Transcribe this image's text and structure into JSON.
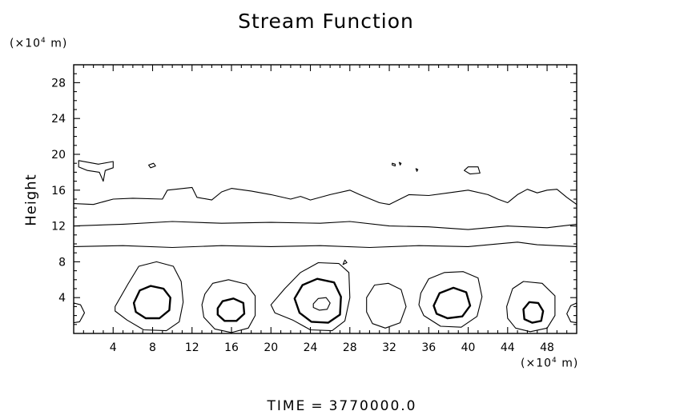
{
  "chart_data": {
    "type": "contour",
    "title": "Stream Function",
    "ylabel": "Height",
    "y_unit": "(×10",
    "y_unit_exp": "4",
    "y_unit_suffix": " m)",
    "x_unit": "(×10",
    "x_unit_exp": "4",
    "x_unit_suffix": " m)",
    "xlim": [
      0,
      51
    ],
    "ylim": [
      0,
      30
    ],
    "x_ticks": [
      4,
      8,
      12,
      16,
      20,
      24,
      28,
      32,
      36,
      40,
      44,
      48
    ],
    "y_ticks": [
      4,
      8,
      12,
      16,
      20,
      24,
      28
    ],
    "grid": false,
    "footer": {
      "label": "TIME",
      "equals": "=",
      "value": "3770000.0"
    },
    "contours": [
      {
        "id": "layer-10",
        "kind": "open",
        "weight": "thin",
        "points": [
          [
            0,
            9.7
          ],
          [
            5,
            9.8
          ],
          [
            10,
            9.6
          ],
          [
            15,
            9.8
          ],
          [
            20,
            9.7
          ],
          [
            25,
            9.8
          ],
          [
            30,
            9.6
          ],
          [
            35,
            9.8
          ],
          [
            40,
            9.7
          ],
          [
            45,
            10.2
          ],
          [
            47,
            9.9
          ],
          [
            51,
            9.7
          ]
        ]
      },
      {
        "id": "layer-12",
        "kind": "open",
        "weight": "thin",
        "points": [
          [
            0,
            12.0
          ],
          [
            5,
            12.2
          ],
          [
            10,
            12.5
          ],
          [
            15,
            12.3
          ],
          [
            20,
            12.4
          ],
          [
            25,
            12.3
          ],
          [
            28,
            12.5
          ],
          [
            32,
            12.0
          ],
          [
            36,
            11.9
          ],
          [
            40,
            11.6
          ],
          [
            44,
            12.0
          ],
          [
            48,
            11.8
          ],
          [
            51,
            12.2
          ]
        ]
      },
      {
        "id": "layer-15",
        "kind": "open",
        "weight": "thin",
        "points": [
          [
            0,
            14.5
          ],
          [
            2,
            14.4
          ],
          [
            4,
            15.0
          ],
          [
            6,
            15.1
          ],
          [
            9,
            15.0
          ],
          [
            9.5,
            16.0
          ],
          [
            12,
            16.3
          ],
          [
            12.5,
            15.2
          ],
          [
            14,
            14.9
          ],
          [
            15,
            15.8
          ],
          [
            16,
            16.2
          ],
          [
            18,
            15.9
          ],
          [
            20,
            15.5
          ],
          [
            22,
            15.0
          ],
          [
            23,
            15.3
          ],
          [
            24,
            14.9
          ],
          [
            26,
            15.5
          ],
          [
            28,
            16.0
          ],
          [
            29,
            15.5
          ],
          [
            31,
            14.6
          ],
          [
            32,
            14.4
          ],
          [
            34,
            15.5
          ],
          [
            36,
            15.4
          ],
          [
            38,
            15.7
          ],
          [
            40,
            16.0
          ],
          [
            42,
            15.5
          ],
          [
            43,
            15.0
          ],
          [
            44,
            14.6
          ],
          [
            45,
            15.5
          ],
          [
            46,
            16.1
          ],
          [
            47,
            15.7
          ],
          [
            48,
            16.0
          ],
          [
            49,
            16.1
          ],
          [
            50,
            15.2
          ],
          [
            51,
            14.4
          ]
        ]
      },
      {
        "id": "patch-upper-left",
        "kind": "closed",
        "weight": "thin",
        "points": [
          [
            0.5,
            19.3
          ],
          [
            2.5,
            18.9
          ],
          [
            4,
            19.2
          ],
          [
            4,
            18.5
          ],
          [
            3.2,
            18.2
          ],
          [
            3,
            17.0
          ],
          [
            2.6,
            18.0
          ],
          [
            1.4,
            18.2
          ],
          [
            0.5,
            18.6
          ]
        ]
      },
      {
        "id": "patch-a",
        "kind": "closed",
        "weight": "thin",
        "points": [
          [
            7.6,
            18.8
          ],
          [
            8.1,
            19.0
          ],
          [
            8.3,
            18.7
          ],
          [
            7.8,
            18.5
          ]
        ]
      },
      {
        "id": "patch-b",
        "kind": "closed",
        "weight": "thin",
        "points": [
          [
            32.3,
            19.0
          ],
          [
            32.6,
            18.9
          ],
          [
            32.6,
            18.7
          ],
          [
            32.3,
            18.8
          ]
        ]
      },
      {
        "id": "patch-c",
        "kind": "closed",
        "weight": "thin",
        "points": [
          [
            33.0,
            19.1
          ],
          [
            33.2,
            19.0
          ],
          [
            33.1,
            18.8
          ]
        ]
      },
      {
        "id": "patch-d",
        "kind": "closed",
        "weight": "thin",
        "points": [
          [
            34.7,
            18.4
          ],
          [
            34.9,
            18.3
          ],
          [
            34.8,
            18.1
          ]
        ]
      },
      {
        "id": "patch-e",
        "kind": "closed",
        "weight": "thin",
        "points": [
          [
            40.0,
            18.6
          ],
          [
            41.0,
            18.6
          ],
          [
            41.2,
            17.9
          ],
          [
            40.2,
            17.8
          ],
          [
            39.6,
            18.2
          ]
        ]
      },
      {
        "id": "patch-f",
        "kind": "closed",
        "weight": "thin",
        "points": [
          [
            27.3,
            7.7
          ],
          [
            27.5,
            8.2
          ],
          [
            27.7,
            7.9
          ]
        ]
      },
      {
        "id": "eddy-edge-left",
        "kind": "closed",
        "weight": "thin",
        "points": [
          [
            0,
            3.4
          ],
          [
            0.7,
            3.2
          ],
          [
            1.1,
            2.3
          ],
          [
            0.6,
            1.3
          ],
          [
            0,
            1.2
          ]
        ]
      },
      {
        "id": "eddy-1-outer",
        "kind": "closed",
        "weight": "thin",
        "points": [
          [
            4.2,
            3.0
          ],
          [
            5.5,
            5.5
          ],
          [
            6.6,
            7.5
          ],
          [
            8.4,
            8.0
          ],
          [
            10.1,
            7.5
          ],
          [
            10.9,
            5.8
          ],
          [
            11.1,
            3.5
          ],
          [
            10.7,
            1.3
          ],
          [
            9.4,
            0.3
          ],
          [
            7.1,
            0.4
          ],
          [
            5.4,
            1.5
          ],
          [
            4.2,
            2.5
          ]
        ]
      },
      {
        "id": "eddy-1-inner",
        "kind": "closed",
        "weight": "thick",
        "points": [
          [
            6.1,
            3.4
          ],
          [
            6.7,
            4.8
          ],
          [
            7.8,
            5.3
          ],
          [
            9.1,
            5.0
          ],
          [
            9.8,
            4.0
          ],
          [
            9.7,
            2.6
          ],
          [
            8.7,
            1.7
          ],
          [
            7.3,
            1.7
          ],
          [
            6.3,
            2.4
          ]
        ]
      },
      {
        "id": "eddy-2-outer",
        "kind": "closed",
        "weight": "thin",
        "points": [
          [
            13.3,
            4.4
          ],
          [
            14.1,
            5.6
          ],
          [
            15.7,
            6.0
          ],
          [
            17.5,
            5.5
          ],
          [
            18.4,
            4.2
          ],
          [
            18.4,
            2.0
          ],
          [
            17.7,
            0.6
          ],
          [
            16.0,
            0.1
          ],
          [
            14.3,
            0.5
          ],
          [
            13.2,
            1.8
          ],
          [
            13.0,
            3.2
          ]
        ]
      },
      {
        "id": "eddy-2-inner",
        "kind": "closed",
        "weight": "thick",
        "points": [
          [
            14.6,
            2.8
          ],
          [
            15.1,
            3.6
          ],
          [
            16.2,
            3.9
          ],
          [
            17.2,
            3.4
          ],
          [
            17.3,
            2.2
          ],
          [
            16.5,
            1.4
          ],
          [
            15.3,
            1.4
          ],
          [
            14.6,
            2.1
          ]
        ]
      },
      {
        "id": "eddy-3-outer",
        "kind": "closed",
        "weight": "thin",
        "points": [
          [
            20.0,
            3.2
          ],
          [
            21.4,
            5.0
          ],
          [
            23.0,
            6.8
          ],
          [
            24.8,
            7.9
          ],
          [
            26.9,
            7.8
          ],
          [
            27.9,
            6.8
          ],
          [
            28.0,
            4.0
          ],
          [
            27.5,
            1.4
          ],
          [
            26.2,
            0.3
          ],
          [
            24.0,
            0.4
          ],
          [
            22.2,
            1.5
          ],
          [
            20.4,
            2.3
          ]
        ]
      },
      {
        "id": "eddy-3-inner",
        "kind": "closed",
        "weight": "thick",
        "points": [
          [
            22.4,
            3.9
          ],
          [
            23.2,
            5.4
          ],
          [
            24.7,
            6.1
          ],
          [
            26.4,
            5.7
          ],
          [
            27.1,
            4.1
          ],
          [
            27.0,
            2.1
          ],
          [
            25.8,
            1.2
          ],
          [
            24.1,
            1.3
          ],
          [
            22.9,
            2.3
          ]
        ]
      },
      {
        "id": "eddy-3-core",
        "kind": "closed",
        "weight": "thin",
        "points": [
          [
            24.3,
            3.3
          ],
          [
            24.8,
            3.9
          ],
          [
            25.6,
            4.0
          ],
          [
            26.0,
            3.4
          ],
          [
            25.7,
            2.7
          ],
          [
            24.9,
            2.6
          ],
          [
            24.3,
            2.9
          ]
        ]
      },
      {
        "id": "eddy-4",
        "kind": "closed",
        "weight": "thin",
        "points": [
          [
            29.7,
            4.0
          ],
          [
            30.5,
            5.4
          ],
          [
            31.9,
            5.6
          ],
          [
            33.2,
            4.9
          ],
          [
            33.7,
            3.0
          ],
          [
            33.1,
            1.2
          ],
          [
            31.6,
            0.6
          ],
          [
            30.3,
            1.1
          ],
          [
            29.7,
            2.4
          ]
        ]
      },
      {
        "id": "eddy-5-outer",
        "kind": "closed",
        "weight": "thin",
        "points": [
          [
            35.2,
            4.5
          ],
          [
            36.0,
            6.1
          ],
          [
            37.6,
            6.8
          ],
          [
            39.5,
            6.9
          ],
          [
            41.0,
            6.2
          ],
          [
            41.4,
            4.1
          ],
          [
            40.9,
            1.9
          ],
          [
            39.3,
            0.7
          ],
          [
            37.2,
            0.8
          ],
          [
            35.5,
            2.0
          ],
          [
            35.0,
            3.2
          ]
        ]
      },
      {
        "id": "eddy-5-inner",
        "kind": "closed",
        "weight": "thick",
        "points": [
          [
            36.5,
            3.1
          ],
          [
            37.1,
            4.5
          ],
          [
            38.5,
            5.1
          ],
          [
            39.8,
            4.6
          ],
          [
            40.2,
            3.1
          ],
          [
            39.4,
            1.9
          ],
          [
            37.9,
            1.7
          ],
          [
            36.8,
            2.2
          ]
        ]
      },
      {
        "id": "eddy-6-outer",
        "kind": "closed",
        "weight": "thin",
        "points": [
          [
            43.9,
            3.0
          ],
          [
            44.5,
            5.0
          ],
          [
            45.6,
            5.8
          ],
          [
            47.5,
            5.6
          ],
          [
            48.8,
            4.2
          ],
          [
            48.8,
            2.0
          ],
          [
            48.0,
            0.6
          ],
          [
            46.3,
            0.2
          ],
          [
            44.8,
            0.6
          ],
          [
            44.0,
            1.7
          ]
        ]
      },
      {
        "id": "eddy-6-inner",
        "kind": "closed",
        "weight": "thick",
        "points": [
          [
            45.6,
            2.7
          ],
          [
            46.2,
            3.5
          ],
          [
            47.1,
            3.4
          ],
          [
            47.6,
            2.5
          ],
          [
            47.4,
            1.4
          ],
          [
            46.5,
            1.2
          ],
          [
            45.7,
            1.6
          ]
        ]
      },
      {
        "id": "eddy-edge-right",
        "kind": "closed",
        "weight": "thin",
        "points": [
          [
            51,
            3.4
          ],
          [
            50.4,
            3.1
          ],
          [
            50.0,
            2.2
          ],
          [
            50.4,
            1.3
          ],
          [
            51,
            1.2
          ]
        ]
      }
    ]
  }
}
